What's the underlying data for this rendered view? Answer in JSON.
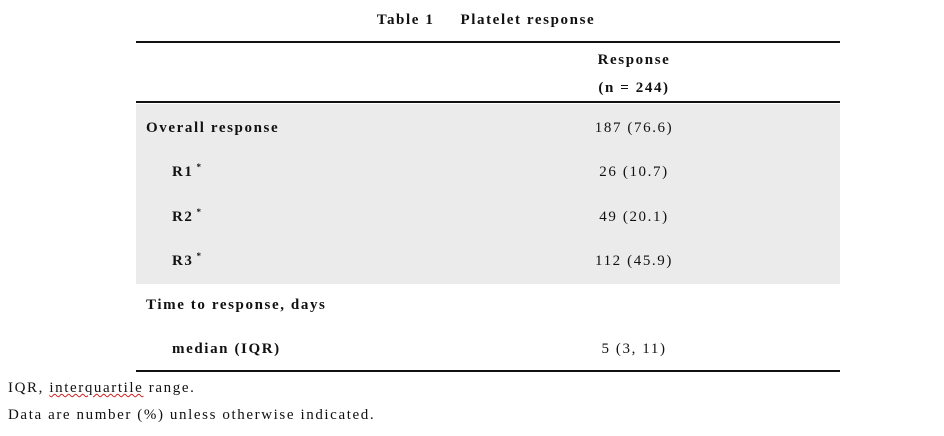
{
  "table": {
    "title": {
      "label": "Table 1",
      "caption": "Platelet response"
    },
    "header": [
      "Response",
      "(n = 244)"
    ],
    "rows": [
      {
        "label": "Overall response",
        "value": "187 (76.6)"
      },
      {
        "label": "R1",
        "note": "*",
        "value": "26 (10.7)"
      },
      {
        "label": "R2",
        "note": "*",
        "value": "49 (20.1)"
      },
      {
        "label": "R3",
        "note": "*",
        "value": "112 (45.9)"
      },
      {
        "label": "Time to response, days"
      },
      {
        "label": "median (IQR)",
        "value": "5 (3, 11)"
      }
    ],
    "footnotes": [
      [
        "IQR, ",
        "interquartile",
        " range."
      ],
      [
        "Data are number (%) unless otherwise indicated."
      ]
    ]
  }
}
